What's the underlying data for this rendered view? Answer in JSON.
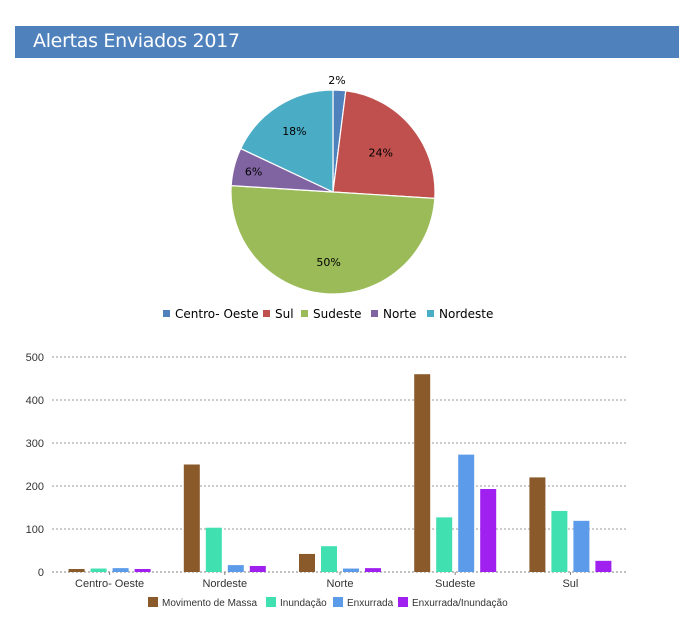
{
  "header": {
    "title": "Alertas Enviados 2017",
    "color": "#4f81bd"
  },
  "chart_data": [
    {
      "type": "pie",
      "title": "",
      "slices": [
        {
          "label": "Centro- Oeste",
          "value": 2,
          "display": "2%",
          "color": "#4f81bd"
        },
        {
          "label": "Sul",
          "value": 24,
          "display": "24%",
          "color": "#c0504d"
        },
        {
          "label": "Sudeste",
          "value": 50,
          "display": "50%",
          "color": "#9bbb59"
        },
        {
          "label": "Norte",
          "value": 6,
          "display": "6%",
          "color": "#8064a2"
        },
        {
          "label": "Nordeste",
          "value": 18,
          "display": "18%",
          "color": "#4bacc6"
        }
      ],
      "legend_position": "bottom"
    },
    {
      "type": "bar",
      "title": "",
      "categories": [
        "Centro- Oeste",
        "Nordeste",
        "Norte",
        "Sudeste",
        "Sul"
      ],
      "series": [
        {
          "name": "Movimento de Massa",
          "color": "#8b5a2b",
          "values": [
            7,
            250,
            42,
            460,
            220
          ]
        },
        {
          "name": "Inundação",
          "color": "#40e0b0",
          "values": [
            8,
            103,
            60,
            127,
            142
          ]
        },
        {
          "name": "Enxurrada",
          "color": "#5b9bea",
          "values": [
            9,
            16,
            8,
            273,
            119
          ]
        },
        {
          "name": "Enxurrada/Inundação",
          "color": "#a020f0",
          "values": [
            7,
            14,
            9,
            193,
            26
          ]
        }
      ],
      "ylim": [
        0,
        500
      ],
      "yticks": [
        0,
        100,
        200,
        300,
        400,
        500
      ],
      "grid": true,
      "legend_position": "bottom"
    }
  ]
}
